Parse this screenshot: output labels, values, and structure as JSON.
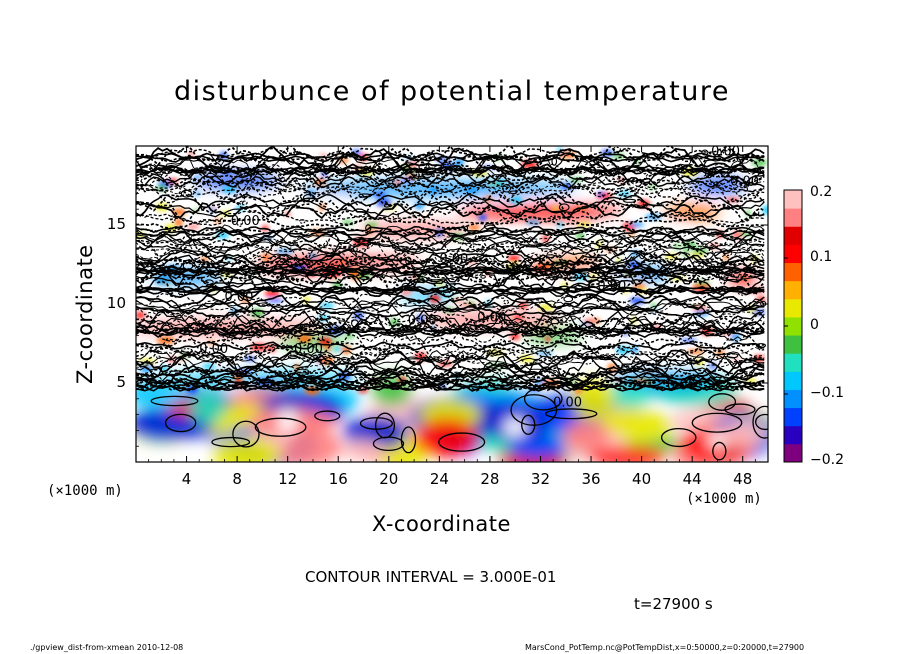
{
  "chart_data": {
    "type": "heatmap",
    "title": "disturbunce of potential temperature",
    "xlabel": "X-coordinate",
    "ylabel": "Z-coordinate",
    "x_unit_left": "(×1000 m)",
    "x_unit_right": "(×1000 m)",
    "xlim": [
      0,
      50
    ],
    "ylim": [
      0,
      20
    ],
    "x_ticks": [
      "4",
      "8",
      "12",
      "16",
      "20",
      "24",
      "28",
      "32",
      "36",
      "40",
      "44",
      "48"
    ],
    "y_ticks": [
      "5",
      "10",
      "15"
    ],
    "colorbar": {
      "range": [
        -0.2,
        0.2
      ],
      "tick_labels": [
        "0.2",
        "0.1",
        "0",
        "−0.1",
        "−0.2"
      ],
      "colors": [
        "#7f007f",
        "#2a00c0",
        "#0040ff",
        "#0090ff",
        "#00c8ff",
        "#20e0c0",
        "#40c040",
        "#90e000",
        "#e8e800",
        "#ffb000",
        "#ff6000",
        "#ff0000",
        "#e00000",
        "#ff8080",
        "#ffc0c0"
      ]
    },
    "contour_labels": [
      "0.00"
    ],
    "contour_interval_text": "CONTOUR INTERVAL = 3.000E-01",
    "time_text": "t=27900 s"
  },
  "footer": {
    "left": "./gpview_dist-from-xmean  2010-12-08",
    "right": "MarsCond_PotTemp.nc@PotTempDist,x=0:50000,z=0:20000,t=27900"
  }
}
